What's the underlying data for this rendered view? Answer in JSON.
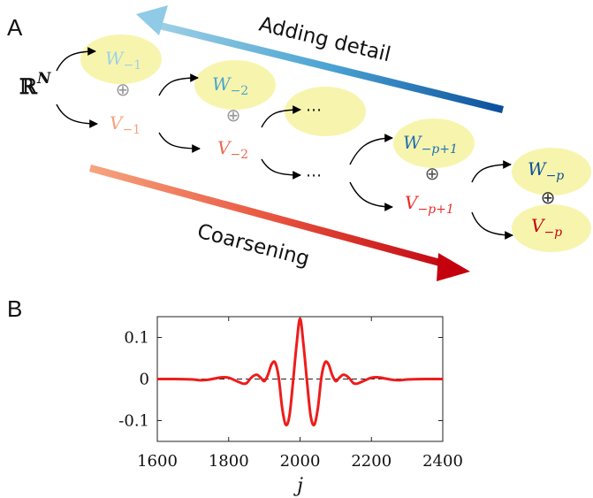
{
  "panels": {
    "a": "A",
    "b": "B"
  },
  "diagram": {
    "root_label": "ℝ",
    "root_sup": "N",
    "adding_detail": "Adding detail",
    "coarsening": "Coarsening",
    "op_symbol": "⊕",
    "ellipsis": "⋯",
    "nodes": {
      "w1": {
        "main": "W",
        "sub": "−1"
      },
      "v1": {
        "main": "V",
        "sub": "−1"
      },
      "w2": {
        "main": "W",
        "sub": "−2"
      },
      "v2": {
        "main": "V",
        "sub": "−2"
      },
      "wp1": {
        "main": "W",
        "sub": "−p+1"
      },
      "vp1": {
        "main": "V",
        "sub": "−p+1"
      },
      "wp": {
        "main": "W",
        "sub": "−p"
      },
      "vp": {
        "main": "V",
        "sub": "−p"
      }
    },
    "colors": {
      "blue_light": "#9fd0e6",
      "blue_mid": "#4aa3d2",
      "blue_dark": "#0b4f9c",
      "red_light": "#f4a07e",
      "red_mid": "#ec5a4e",
      "red_dark": "#c8000f",
      "blob": "#f7f5ad"
    }
  },
  "chart_data": {
    "type": "line",
    "title": "",
    "xlabel": "j",
    "ylabel": "",
    "xlim": [
      1600,
      2400
    ],
    "ylim": [
      -0.15,
      0.15
    ],
    "xticks": [
      1600,
      1800,
      2000,
      2200,
      2400
    ],
    "yticks": [
      0.1,
      0,
      -0.1
    ],
    "xtick_labels": [
      "1600",
      "1800",
      "2000",
      "2200",
      "2400"
    ],
    "ytick_labels": [
      "0.1",
      "0",
      "-0.1"
    ],
    "zero_line": "dashed",
    "line_color": "#ee1c1c",
    "series": [
      {
        "x": [
          1600,
          1650,
          1700,
          1720,
          1740,
          1760,
          1780,
          1800,
          1820,
          1840,
          1850,
          1860,
          1870,
          1880,
          1890,
          1900,
          1910,
          1920,
          1930,
          1940,
          1950,
          1960,
          1970,
          1980,
          1990,
          2000,
          2010,
          2020,
          2030,
          2040,
          2050,
          2060,
          2070,
          2080,
          2090,
          2100,
          2110,
          2120,
          2130,
          2140,
          2150,
          2160,
          2180,
          2200,
          2220,
          2240,
          2260,
          2280,
          2300,
          2350,
          2400
        ],
        "y": [
          0,
          0,
          -0.001,
          -0.003,
          -0.002,
          0.001,
          0.004,
          0.003,
          -0.004,
          -0.011,
          -0.01,
          0.0,
          0.008,
          0.01,
          0.003,
          -0.005,
          0.01,
          0.035,
          0.04,
          0.005,
          -0.07,
          -0.11,
          -0.09,
          -0.01,
          0.08,
          0.145,
          0.08,
          -0.01,
          -0.09,
          -0.11,
          -0.07,
          0.005,
          0.04,
          0.035,
          0.01,
          -0.005,
          0.003,
          0.01,
          0.008,
          0.0,
          -0.01,
          -0.011,
          -0.004,
          0.003,
          0.004,
          0.001,
          -0.002,
          -0.003,
          -0.001,
          0,
          0
        ]
      }
    ]
  }
}
